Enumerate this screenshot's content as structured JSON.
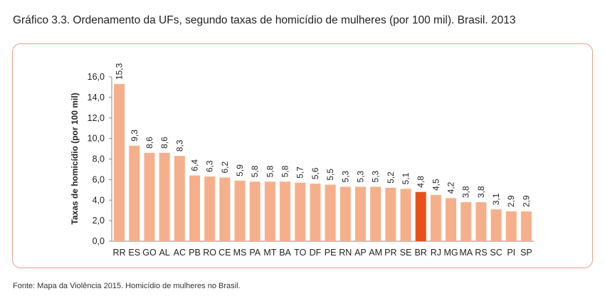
{
  "title": "Gráfico 3.3. Ordenamento da UFs, segundo taxas de homicídio de mulheres (por 100 mil). Brasil. 2013",
  "source": "Fonte: Mapa da Violência 2015. Homicídio de mulheres no Brasil.",
  "colors": {
    "bar": "#f5b08b",
    "highlight": "#e8501a",
    "frame": "#e8a088"
  },
  "chart_data": {
    "type": "bar",
    "title": "",
    "xlabel": "",
    "ylabel": "Taxas de homicídio (por 100 mil)",
    "ylim": [
      0,
      16
    ],
    "yticks": [
      "0,0",
      "2,0",
      "4,0",
      "6,0",
      "8,0",
      "10,0",
      "12,0",
      "14,0",
      "16,0"
    ],
    "grid": false,
    "categories": [
      "RR",
      "ES",
      "GO",
      "AL",
      "AC",
      "PB",
      "RO",
      "CE",
      "MS",
      "PA",
      "MT",
      "BA",
      "TO",
      "DF",
      "PE",
      "RN",
      "AP",
      "AM",
      "PR",
      "SE",
      "BR",
      "RJ",
      "MG",
      "MA",
      "RS",
      "SC",
      "PI",
      "SP"
    ],
    "values": [
      15.3,
      9.3,
      8.6,
      8.6,
      8.3,
      6.4,
      6.3,
      6.2,
      5.9,
      5.8,
      5.8,
      5.8,
      5.7,
      5.6,
      5.5,
      5.3,
      5.3,
      5.3,
      5.2,
      5.1,
      4.8,
      4.5,
      4.2,
      3.8,
      3.8,
      3.1,
      2.9,
      2.9
    ],
    "labels": [
      "15,3",
      "9,3",
      "8,6",
      "8,6",
      "8,3",
      "6,4",
      "6,3",
      "6,2",
      "5,9",
      "5,8",
      "5,8",
      "5,8",
      "5,7",
      "5,6",
      "5,5",
      "5,3",
      "5,3",
      "5,3",
      "5,2",
      "5,1",
      "4,8",
      "4,5",
      "4,2",
      "3,8",
      "3,8",
      "3,1",
      "2,9",
      "2,9"
    ],
    "highlight": "BR"
  }
}
